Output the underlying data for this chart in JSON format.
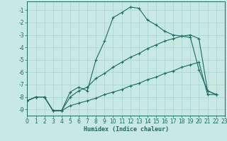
{
  "xlabel": "Humidex (Indice chaleur)",
  "bg_color": "#c8e8e4",
  "grid_color": "#a8d4d0",
  "line_color": "#1a6b60",
  "xlim": [
    0,
    23
  ],
  "ylim": [
    -9.5,
    -0.3
  ],
  "yticks": [
    -9,
    -8,
    -7,
    -6,
    -5,
    -4,
    -3,
    -2,
    -1
  ],
  "xticks": [
    0,
    1,
    2,
    3,
    4,
    5,
    6,
    7,
    8,
    9,
    10,
    11,
    12,
    13,
    14,
    15,
    16,
    17,
    18,
    19,
    20,
    21,
    22,
    23
  ],
  "line1_x": [
    0,
    1,
    2,
    3,
    4,
    5,
    6,
    7,
    8,
    9,
    10,
    11,
    12,
    13,
    14,
    15,
    16,
    17,
    18,
    19,
    20,
    21,
    22
  ],
  "line1_y": [
    -8.3,
    -8.0,
    -8.0,
    -9.1,
    -9.1,
    -7.6,
    -7.2,
    -7.5,
    -5.0,
    -3.5,
    -1.6,
    -1.2,
    -0.75,
    -0.85,
    -1.8,
    -2.2,
    -2.7,
    -3.0,
    -3.1,
    -3.2,
    -5.8,
    -7.5,
    -7.8
  ],
  "line2_x": [
    0,
    1,
    2,
    3,
    4,
    5,
    6,
    7,
    8,
    9,
    10,
    11,
    12,
    13,
    14,
    15,
    16,
    17,
    18,
    19,
    20,
    21,
    22
  ],
  "line2_y": [
    -8.3,
    -8.0,
    -8.0,
    -9.1,
    -9.1,
    -8.0,
    -7.5,
    -7.2,
    -6.5,
    -6.1,
    -5.6,
    -5.2,
    -4.8,
    -4.5,
    -4.1,
    -3.8,
    -3.5,
    -3.3,
    -3.1,
    -3.0,
    -3.3,
    -7.5,
    -7.8
  ],
  "line3_x": [
    0,
    1,
    2,
    3,
    4,
    5,
    6,
    7,
    8,
    9,
    10,
    11,
    12,
    13,
    14,
    15,
    16,
    17,
    18,
    19,
    20,
    21,
    22
  ],
  "line3_y": [
    -8.3,
    -8.0,
    -8.0,
    -9.1,
    -9.1,
    -8.7,
    -8.5,
    -8.3,
    -8.1,
    -7.8,
    -7.6,
    -7.4,
    -7.1,
    -6.9,
    -6.6,
    -6.4,
    -6.1,
    -5.9,
    -5.6,
    -5.4,
    -5.2,
    -7.8,
    -7.8
  ]
}
